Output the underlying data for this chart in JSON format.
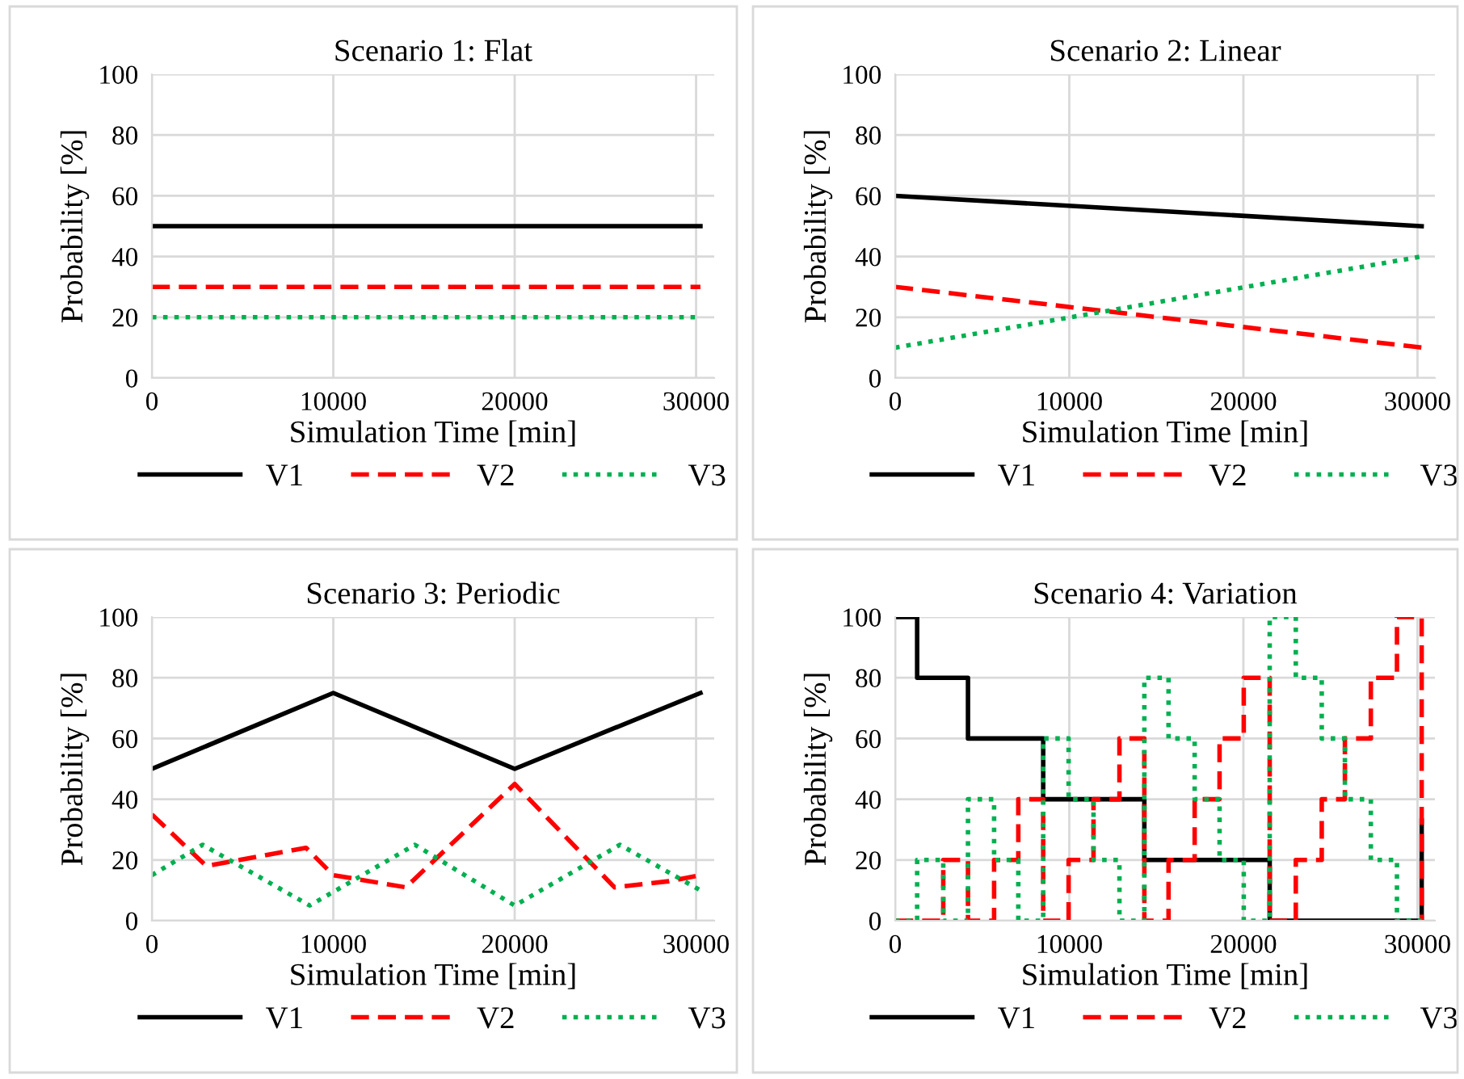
{
  "chart_data": [
    {
      "type": "line",
      "title": "Scenario 1: Flat",
      "xlabel": "Simulation Time [min]",
      "ylabel": "Probability [%]",
      "xlim": [
        0,
        31000
      ],
      "xticks": [
        0,
        10000,
        20000,
        30000
      ],
      "ylim": [
        0,
        100
      ],
      "yticks": [
        0,
        20,
        40,
        60,
        80,
        100
      ],
      "grid": true,
      "legend": "bottom",
      "marker": "none",
      "series": [
        {
          "name": "V1",
          "color": "#000000",
          "line_style": "solid",
          "x": [
            0,
            30240
          ],
          "values": [
            50,
            50
          ]
        },
        {
          "name": "V2",
          "color": "#ff0000",
          "line_style": "dashed",
          "x": [
            0,
            30240
          ],
          "values": [
            30,
            30
          ]
        },
        {
          "name": "V3",
          "color": "#00b050",
          "line_style": "dotted",
          "x": [
            0,
            30240
          ],
          "values": [
            20,
            20
          ]
        }
      ]
    },
    {
      "type": "line",
      "title": "Scenario 2: Linear",
      "xlabel": "Simulation Time [min]",
      "ylabel": "Probability [%]",
      "xlim": [
        0,
        31000
      ],
      "xticks": [
        0,
        10000,
        20000,
        30000
      ],
      "ylim": [
        0,
        100
      ],
      "yticks": [
        0,
        20,
        40,
        60,
        80,
        100
      ],
      "grid": true,
      "legend": "bottom",
      "marker": "none",
      "series": [
        {
          "name": "V1",
          "color": "#000000",
          "line_style": "solid",
          "x": [
            0,
            30240
          ],
          "values": [
            60,
            50
          ]
        },
        {
          "name": "V2",
          "color": "#ff0000",
          "line_style": "dashed",
          "x": [
            0,
            30240
          ],
          "values": [
            30,
            10
          ]
        },
        {
          "name": "V3",
          "color": "#00b050",
          "line_style": "dotted",
          "x": [
            0,
            30240
          ],
          "values": [
            10,
            40
          ]
        }
      ]
    },
    {
      "type": "line",
      "title": "Scenario 3: Periodic",
      "xlabel": "Simulation Time [min]",
      "ylabel": "Probability [%]",
      "xlim": [
        0,
        31000
      ],
      "xticks": [
        0,
        10000,
        20000,
        30000
      ],
      "ylim": [
        0,
        100
      ],
      "yticks": [
        0,
        20,
        40,
        60,
        80,
        100
      ],
      "grid": true,
      "legend": "bottom",
      "marker": "none",
      "series": [
        {
          "name": "V1",
          "color": "#000000",
          "line_style": "solid",
          "x": [
            0,
            10000,
            20000,
            30240
          ],
          "values": [
            50,
            75,
            50,
            75
          ]
        },
        {
          "name": "V2",
          "color": "#ff0000",
          "line_style": "dashed",
          "x": [
            0,
            3000,
            8500,
            10000,
            14000,
            20000,
            25500,
            28500,
            30240
          ],
          "values": [
            35,
            18,
            24,
            15,
            11,
            45,
            11,
            13,
            15
          ]
        },
        {
          "name": "V3",
          "color": "#00b050",
          "line_style": "dotted",
          "x": [
            0,
            2800,
            8700,
            14500,
            20000,
            25800,
            30240
          ],
          "values": [
            15,
            25,
            5,
            25,
            5,
            25,
            10
          ]
        }
      ]
    },
    {
      "type": "step",
      "title": "Scenario 4: Variation",
      "xlabel": "Simulation Time [min]",
      "ylabel": "Probability [%]",
      "xlim": [
        0,
        31000
      ],
      "xticks": [
        0,
        10000,
        20000,
        30000
      ],
      "ylim": [
        0,
        100
      ],
      "yticks": [
        0,
        20,
        40,
        60,
        80,
        100
      ],
      "grid": true,
      "legend": "bottom",
      "marker": "none",
      "series": [
        {
          "name": "V1",
          "color": "#000000",
          "line_style": "solid",
          "x": [
            0,
            1260,
            4180,
            8500,
            14310,
            21510,
            30240
          ],
          "values": [
            100,
            80,
            60,
            40,
            20,
            0,
            33
          ]
        },
        {
          "name": "V2",
          "color": "#ff0000",
          "line_style": "dashed",
          "x": [
            0,
            2760,
            4180,
            5680,
            7070,
            8500,
            9960,
            11390,
            12880,
            14310,
            15700,
            17200,
            18630,
            20020,
            21510,
            23010,
            24500,
            25830,
            27320,
            28820,
            30240
          ],
          "values": [
            0,
            20,
            0,
            20,
            40,
            0,
            20,
            40,
            60,
            0,
            20,
            40,
            60,
            80,
            0,
            20,
            40,
            60,
            80,
            100,
            0
          ]
        },
        {
          "name": "V3",
          "color": "#00b050",
          "line_style": "dotted",
          "x": [
            0,
            1260,
            2760,
            4180,
            5680,
            7070,
            8500,
            9960,
            11390,
            12880,
            14310,
            15700,
            17200,
            18630,
            20020,
            21510,
            23010,
            24500,
            25830,
            27320,
            28820,
            30240
          ],
          "values": [
            0,
            20,
            0,
            40,
            20,
            0,
            60,
            40,
            20,
            0,
            80,
            60,
            40,
            20,
            0,
            100,
            80,
            60,
            40,
            20,
            0,
            0
          ]
        }
      ]
    }
  ]
}
